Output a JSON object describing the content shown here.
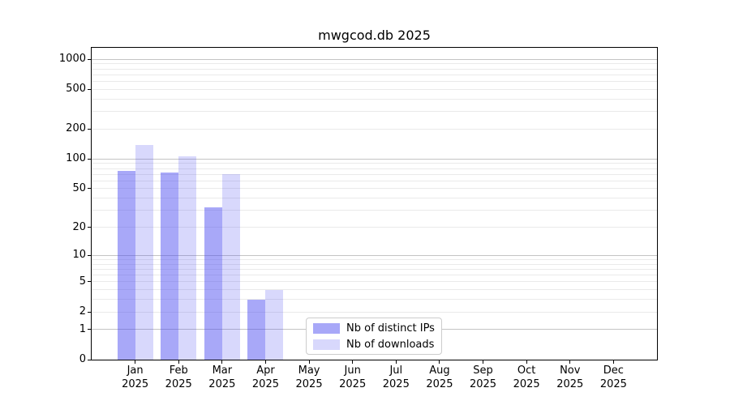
{
  "title": "mwgcod.db 2025",
  "chart_data": {
    "type": "bar",
    "title": "mwgcod.db 2025",
    "x_months": [
      "Jan",
      "Feb",
      "Mar",
      "Apr",
      "May",
      "Jun",
      "Jul",
      "Aug",
      "Sep",
      "Oct",
      "Nov",
      "Dec"
    ],
    "x_year": "2025",
    "categories": [
      "Jan 2025",
      "Feb 2025",
      "Mar 2025",
      "Apr 2025",
      "May 2025",
      "Jun 2025",
      "Jul 2025",
      "Aug 2025",
      "Sep 2025",
      "Oct 2025",
      "Nov 2025",
      "Dec 2025"
    ],
    "series": [
      {
        "name": "Nb of distinct IPs",
        "color": "rgba(70,70,240,0.47)",
        "solid_color": "#a8a8f3",
        "values": [
          76,
          73,
          32,
          3,
          null,
          null,
          null,
          null,
          null,
          null,
          null,
          null
        ]
      },
      {
        "name": "Nb of downloads",
        "color": "rgba(70,70,240,0.21)",
        "solid_color": "#d8d8f9",
        "values": [
          137,
          107,
          70,
          4,
          null,
          null,
          null,
          null,
          null,
          null,
          null,
          null
        ]
      }
    ],
    "yscale": "log1p",
    "y_ticks": [
      0,
      1,
      2,
      5,
      10,
      20,
      50,
      100,
      200,
      500,
      1000
    ],
    "ylim": [
      0,
      1300
    ],
    "xlabel": "",
    "ylabel": "",
    "grid": {
      "major_lines": [
        1,
        10,
        100,
        1000
      ],
      "minor_multipliers": [
        2,
        3,
        4,
        5,
        6,
        7,
        8,
        9
      ],
      "minor_decades": [
        1,
        10,
        100
      ]
    },
    "legend_position": "lower center, inside plot"
  },
  "colors": {
    "bar_distinct_ips": "#a8a8f3",
    "bar_downloads": "#d8d8f9",
    "grid_major": "#c4c4c4",
    "grid_minor": "#eaeaea",
    "axis": "#000000",
    "legend_border": "#cccccc",
    "background": "#ffffff",
    "text": "#000000"
  }
}
